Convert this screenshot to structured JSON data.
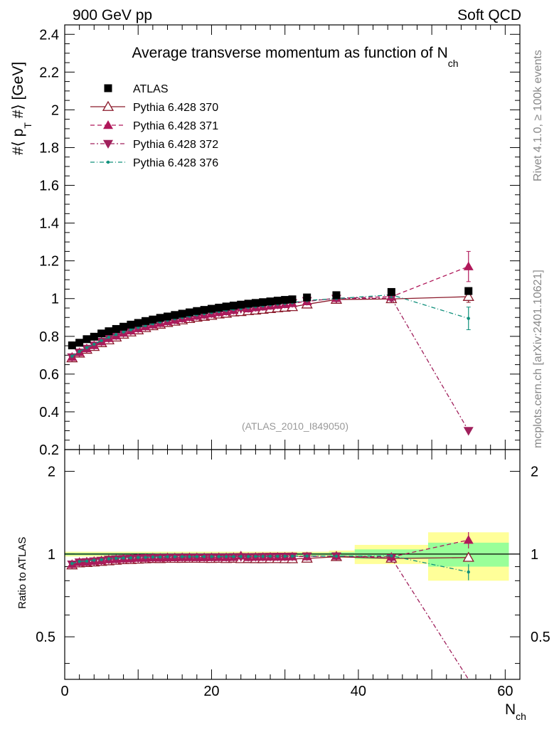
{
  "header": {
    "left": "900 GeV pp",
    "right": "Soft QCD"
  },
  "side_text": {
    "rivet": "Rivet 4.1.0, ≥ 100k events",
    "mcplots": "mcplots.cern.ch [arXiv:2401.10621]"
  },
  "chart_data": {
    "type": "scatter",
    "title_main": "Average transverse momentum as function of N",
    "title_sub": "ch",
    "watermark": "(ATLAS_2010_I849050)",
    "ylabel_main": "#⟨ p",
    "ylabel_sub": "T",
    "ylabel_tail": " #⟩ [GeV]",
    "ylabel_ratio": "Ratio to ATLAS",
    "xlabel_main": "N",
    "xlabel_sub": "ch",
    "xlim": [
      0,
      62
    ],
    "ylim": [
      0.2,
      2.45
    ],
    "ratio_ylim": [
      0.35,
      2.4
    ],
    "x_ticks": [
      "0",
      "20",
      "40",
      "60"
    ],
    "y_ticks": [
      "0.2",
      "0.4",
      "0.6",
      "0.8",
      "1",
      "1.2",
      "1.4",
      "1.6",
      "1.8",
      "2",
      "2.2",
      "2.4"
    ],
    "ratio_ticks": [
      "0.5",
      "1",
      "2"
    ],
    "legend": [
      {
        "label": "ATLAS",
        "color": "#000000",
        "marker": "square",
        "dash": ""
      },
      {
        "label": "Pythia 6.428 370",
        "color": "#8b1a2b",
        "marker": "triangle-open",
        "dash": ""
      },
      {
        "label": "Pythia 6.428 371",
        "color": "#b0185a",
        "marker": "triangle-up",
        "dash": "6,4"
      },
      {
        "label": "Pythia 6.428 372",
        "color": "#a0205c",
        "marker": "triangle-down",
        "dash": "6,3,2,3"
      },
      {
        "label": "Pythia 6.428 376",
        "color": "#10907c",
        "marker": "dot",
        "dash": "6,3,1,3"
      }
    ],
    "data_x": [
      1,
      2,
      3,
      4,
      5,
      6,
      7,
      8,
      9,
      10,
      11,
      12,
      13,
      14,
      15,
      16,
      17,
      18,
      19,
      20,
      21,
      22,
      23,
      24,
      25,
      26,
      27,
      28,
      29,
      30,
      31,
      33,
      37,
      44.5,
      55
    ],
    "data_y": [
      0.752,
      0.766,
      0.785,
      0.798,
      0.815,
      0.827,
      0.839,
      0.851,
      0.862,
      0.871,
      0.881,
      0.889,
      0.898,
      0.905,
      0.913,
      0.92,
      0.927,
      0.934,
      0.94,
      0.946,
      0.952,
      0.958,
      0.963,
      0.968,
      0.973,
      0.977,
      0.981,
      0.985,
      0.989,
      0.993,
      0.996,
      1.006,
      1.018,
      1.035,
      1.04
    ],
    "ratio_bands": [
      {
        "x0": 0,
        "x1": 36,
        "green": [
          0.99,
          1.01
        ],
        "yellow": [
          0.98,
          1.02
        ]
      },
      {
        "x0": 36,
        "x1": 39.5,
        "green": [
          0.985,
          1.015
        ],
        "yellow": [
          0.97,
          1.03
        ]
      },
      {
        "x0": 39.5,
        "x1": 49.5,
        "green": [
          0.96,
          1.04
        ],
        "yellow": [
          0.92,
          1.08
        ]
      },
      {
        "x0": 49.5,
        "x1": 60.5,
        "green": [
          0.9,
          1.1
        ],
        "yellow": [
          0.8,
          1.2
        ]
      }
    ],
    "series": [
      {
        "name": "Pythia 6.428 370",
        "x": [
          1,
          2,
          3,
          4,
          5,
          6,
          7,
          8,
          9,
          10,
          11,
          12,
          13,
          14,
          15,
          16,
          17,
          18,
          19,
          20,
          21,
          22,
          23,
          24,
          25,
          26,
          27,
          28,
          29,
          30,
          31,
          33,
          37,
          44.5,
          55
        ],
        "y": [
          0.685,
          0.71,
          0.73,
          0.745,
          0.765,
          0.78,
          0.795,
          0.81,
          0.822,
          0.833,
          0.845,
          0.855,
          0.863,
          0.872,
          0.879,
          0.886,
          0.893,
          0.9,
          0.905,
          0.91,
          0.917,
          0.921,
          0.928,
          0.93,
          0.935,
          0.938,
          0.942,
          0.946,
          0.95,
          0.953,
          0.956,
          0.97,
          0.995,
          0.998,
          1.01
        ],
        "err": [
          0,
          0,
          0,
          0,
          0,
          0,
          0,
          0,
          0,
          0,
          0,
          0,
          0,
          0,
          0,
          0,
          0,
          0,
          0,
          0,
          0,
          0,
          0,
          0,
          0,
          0,
          0,
          0,
          0,
          0,
          0,
          0,
          0,
          0.01,
          0.03
        ]
      },
      {
        "name": "Pythia 6.428 371",
        "x": [
          1,
          2,
          3,
          4,
          5,
          6,
          7,
          8,
          9,
          10,
          11,
          12,
          13,
          14,
          15,
          16,
          17,
          18,
          19,
          20,
          21,
          22,
          23,
          24,
          25,
          26,
          27,
          28,
          29,
          30,
          31,
          33,
          37,
          44.5,
          55
        ],
        "y": [
          0.69,
          0.715,
          0.735,
          0.752,
          0.772,
          0.79,
          0.803,
          0.818,
          0.83,
          0.842,
          0.852,
          0.862,
          0.87,
          0.879,
          0.887,
          0.895,
          0.902,
          0.908,
          0.914,
          0.92,
          0.927,
          0.932,
          0.938,
          0.955,
          0.947,
          0.953,
          0.957,
          0.962,
          0.966,
          0.97,
          0.975,
          0.985,
          1.002,
          1.01,
          1.17
        ],
        "err": [
          0,
          0,
          0,
          0,
          0,
          0,
          0,
          0,
          0,
          0,
          0,
          0,
          0,
          0,
          0,
          0,
          0,
          0,
          0,
          0,
          0,
          0,
          0,
          0,
          0,
          0,
          0,
          0,
          0,
          0,
          0,
          0,
          0,
          0.015,
          0.08
        ]
      },
      {
        "name": "Pythia 6.428 372",
        "x": [
          1,
          2,
          3,
          4,
          5,
          6,
          7,
          8,
          9,
          10,
          11,
          12,
          13,
          14,
          15,
          16,
          17,
          18,
          19,
          20,
          21,
          22,
          23,
          24,
          25,
          26,
          27,
          28,
          29,
          30,
          31,
          33,
          37,
          44.5,
          55
        ],
        "y": [
          0.69,
          0.715,
          0.735,
          0.752,
          0.772,
          0.79,
          0.805,
          0.818,
          0.83,
          0.842,
          0.853,
          0.862,
          0.872,
          0.88,
          0.888,
          0.896,
          0.903,
          0.91,
          0.916,
          0.922,
          0.928,
          0.934,
          0.94,
          0.946,
          0.95,
          0.955,
          0.96,
          0.965,
          0.969,
          0.973,
          0.977,
          0.988,
          1.0,
          1.002,
          0.3
        ],
        "err": [
          0,
          0,
          0,
          0,
          0,
          0,
          0,
          0,
          0,
          0,
          0,
          0,
          0,
          0,
          0,
          0,
          0,
          0,
          0,
          0,
          0,
          0,
          0,
          0,
          0,
          0,
          0,
          0,
          0,
          0,
          0,
          0,
          0,
          0.015,
          0
        ]
      },
      {
        "name": "Pythia 6.428 376",
        "x": [
          1,
          2,
          3,
          4,
          5,
          6,
          7,
          8,
          9,
          10,
          11,
          12,
          13,
          14,
          15,
          16,
          17,
          18,
          19,
          20,
          21,
          22,
          23,
          24,
          25,
          26,
          27,
          28,
          29,
          30,
          31,
          33,
          37,
          44.5,
          55
        ],
        "y": [
          0.695,
          0.72,
          0.74,
          0.758,
          0.778,
          0.795,
          0.81,
          0.823,
          0.835,
          0.847,
          0.857,
          0.867,
          0.876,
          0.885,
          0.893,
          0.9,
          0.907,
          0.914,
          0.92,
          0.926,
          0.932,
          0.938,
          0.943,
          0.948,
          0.953,
          0.958,
          0.962,
          0.967,
          0.971,
          0.975,
          0.979,
          0.99,
          1.0,
          1.02,
          0.895
        ],
        "err": [
          0,
          0,
          0,
          0,
          0,
          0,
          0,
          0,
          0,
          0,
          0,
          0,
          0,
          0,
          0,
          0,
          0,
          0,
          0,
          0,
          0,
          0,
          0,
          0,
          0,
          0,
          0,
          0,
          0,
          0,
          0,
          0,
          0,
          0.015,
          0.06
        ]
      }
    ]
  }
}
